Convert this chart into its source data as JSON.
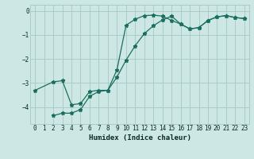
{
  "xlabel": "Humidex (Indice chaleur)",
  "ylabel": "",
  "bg_color": "#cde8e4",
  "line_color": "#1a6e60",
  "grid_color": "#aaccc8",
  "xlim": [
    -0.5,
    23.5
  ],
  "ylim": [
    -4.7,
    0.25
  ],
  "xticks": [
    0,
    1,
    2,
    3,
    4,
    5,
    6,
    7,
    8,
    9,
    10,
    11,
    12,
    13,
    14,
    15,
    16,
    17,
    18,
    19,
    20,
    21,
    22,
    23
  ],
  "yticks": [
    0,
    -1,
    -2,
    -3,
    -4
  ],
  "line1_x": [
    0,
    2,
    3,
    4,
    5,
    6,
    7,
    8,
    9,
    10,
    11,
    12,
    13,
    14,
    15,
    16,
    17,
    18,
    19,
    20,
    21,
    22,
    23
  ],
  "line1_y": [
    -3.3,
    -2.95,
    -2.9,
    -3.9,
    -3.85,
    -3.35,
    -3.3,
    -3.3,
    -2.45,
    -0.6,
    -0.35,
    -0.2,
    -0.18,
    -0.22,
    -0.4,
    -0.55,
    -0.75,
    -0.7,
    -0.4,
    -0.25,
    -0.2,
    -0.28,
    -0.32
  ],
  "line2_x": [
    2,
    3,
    4,
    5,
    6,
    7,
    8,
    9,
    10,
    11,
    12,
    13,
    14,
    15,
    16,
    17,
    18,
    19,
    20,
    21,
    22,
    23
  ],
  "line2_y": [
    -4.35,
    -4.25,
    -4.25,
    -4.1,
    -3.55,
    -3.35,
    -3.3,
    -2.75,
    -2.05,
    -1.45,
    -0.95,
    -0.62,
    -0.38,
    -0.22,
    -0.55,
    -0.75,
    -0.7,
    -0.4,
    -0.25,
    -0.2,
    -0.28,
    -0.32
  ]
}
